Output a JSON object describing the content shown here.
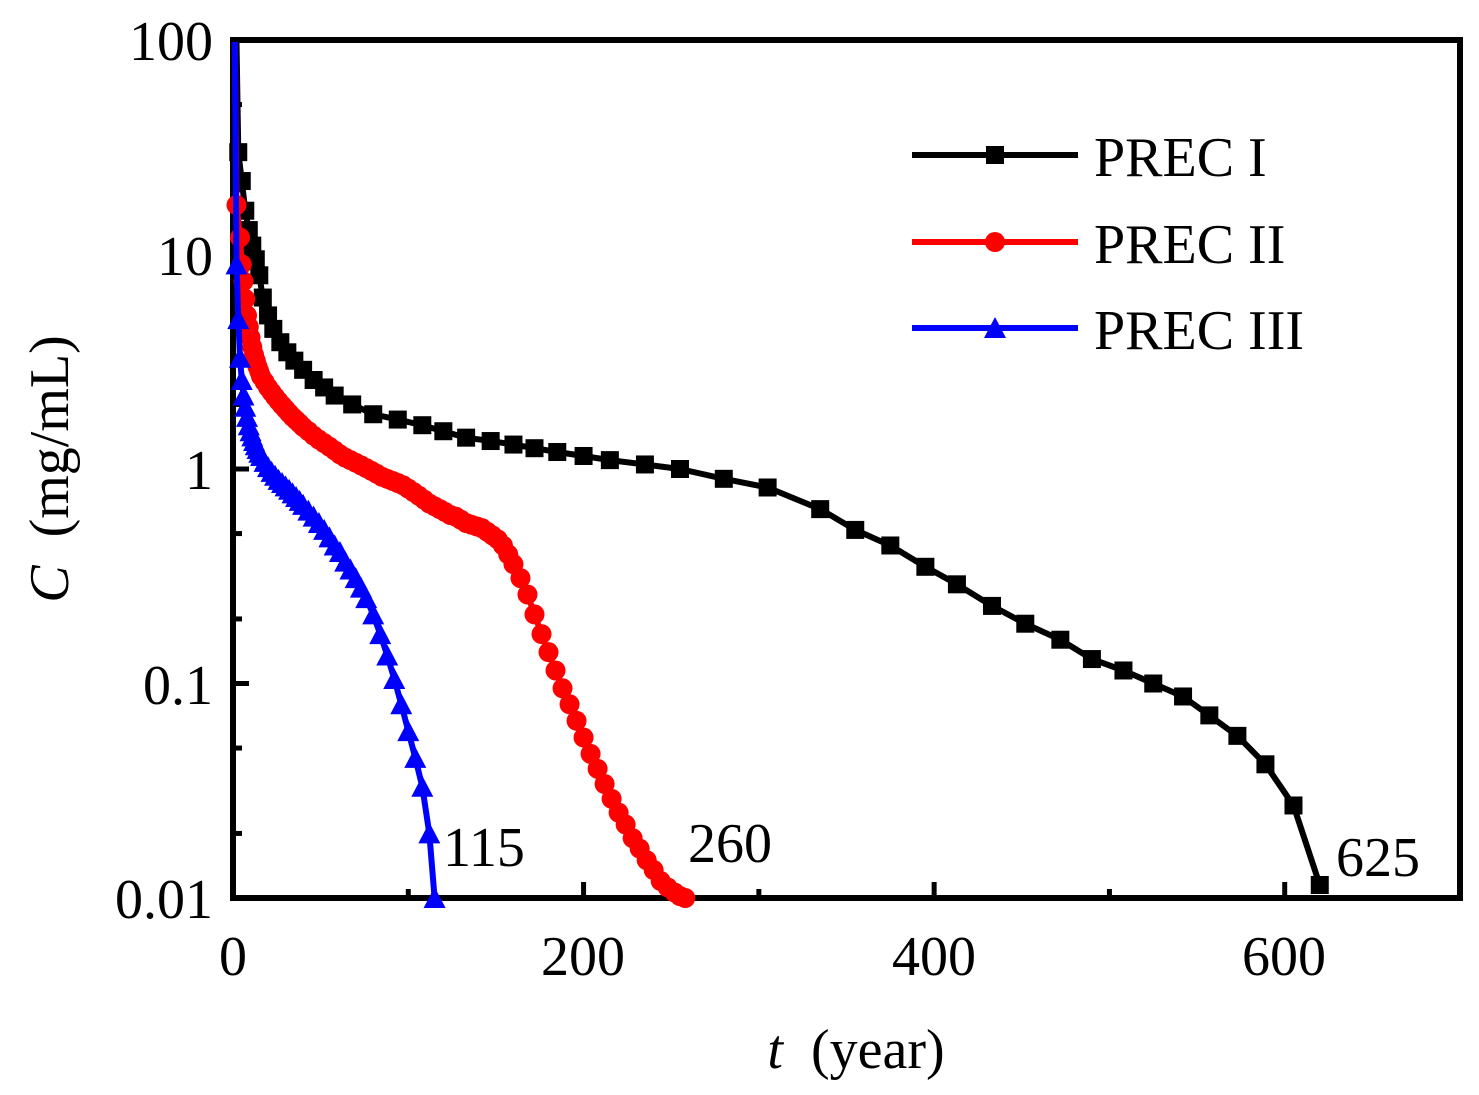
{
  "chart_data": {
    "type": "line",
    "title": "",
    "xlabel_var": "t",
    "xlabel_unit": "(year)",
    "ylabel_var": "C",
    "ylabel_unit": "(mg/mL)",
    "xlim": [
      0,
      700
    ],
    "ylim": [
      0.01,
      100
    ],
    "yscale": "log",
    "x_ticks": [
      0,
      200,
      400,
      600
    ],
    "x_tick_labels": [
      "0",
      "200",
      "400",
      "600"
    ],
    "y_ticks": [
      0.01,
      0.1,
      1,
      10,
      100
    ],
    "y_tick_labels": [
      "0.01",
      "0.1",
      "1",
      "10",
      "100"
    ],
    "legend_position": "top-right",
    "series": [
      {
        "name": "PREC I",
        "color": "#000000",
        "marker": "square",
        "x": [
          3,
          5,
          7,
          9,
          11,
          13,
          15,
          17,
          20,
          23,
          27,
          31,
          35,
          40,
          46,
          52,
          58,
          68,
          80,
          94,
          108,
          120,
          133,
          147,
          160,
          172,
          185,
          200,
          215,
          235,
          255,
          280,
          305,
          335,
          355,
          375,
          395,
          413,
          433,
          452,
          472,
          490,
          508,
          525,
          542,
          557,
          573,
          589,
          605,
          620
        ],
        "y": [
          30,
          22,
          16,
          13,
          11,
          9.5,
          8.0,
          6.3,
          5.2,
          4.5,
          3.9,
          3.5,
          3.2,
          2.9,
          2.6,
          2.4,
          2.2,
          2.0,
          1.8,
          1.7,
          1.6,
          1.5,
          1.4,
          1.35,
          1.3,
          1.25,
          1.2,
          1.15,
          1.1,
          1.05,
          1.0,
          0.9,
          0.82,
          0.65,
          0.52,
          0.44,
          0.35,
          0.29,
          0.23,
          0.19,
          0.16,
          0.13,
          0.115,
          0.1,
          0.087,
          0.071,
          0.057,
          0.042,
          0.027,
          0.0115
        ]
      },
      {
        "name": "PREC II",
        "color": "#ff0000",
        "marker": "circle",
        "x": [
          2,
          4,
          5,
          6,
          7,
          8,
          9,
          10,
          11,
          12,
          13,
          14,
          15,
          16,
          18,
          20,
          22,
          24,
          26,
          28,
          30,
          32,
          34,
          36,
          38,
          40,
          43,
          46,
          49,
          52,
          55,
          58,
          61,
          64,
          67,
          70,
          73,
          76,
          79,
          82,
          85,
          88,
          91,
          94,
          97,
          100,
          103,
          106,
          109,
          112,
          115,
          118,
          121,
          124,
          127,
          130,
          133,
          136,
          139,
          142,
          145,
          148,
          151,
          154,
          157,
          160,
          164,
          168,
          172,
          176,
          180,
          184,
          188,
          192,
          196,
          200,
          204,
          208,
          212,
          216,
          220,
          224,
          228,
          232,
          236,
          240,
          244,
          248,
          252,
          255,
          258
        ],
        "y": [
          17,
          12,
          9,
          7.5,
          6.2,
          5.2,
          4.6,
          4.1,
          3.7,
          3.4,
          3.2,
          3.0,
          2.85,
          2.7,
          2.55,
          2.4,
          2.28,
          2.17,
          2.07,
          1.98,
          1.9,
          1.82,
          1.75,
          1.69,
          1.63,
          1.57,
          1.5,
          1.43,
          1.37,
          1.32,
          1.27,
          1.22,
          1.17,
          1.13,
          1.1,
          1.07,
          1.04,
          1.01,
          0.98,
          0.95,
          0.92,
          0.9,
          0.88,
          0.86,
          0.84,
          0.81,
          0.78,
          0.75,
          0.72,
          0.69,
          0.67,
          0.65,
          0.63,
          0.61,
          0.6,
          0.58,
          0.56,
          0.55,
          0.54,
          0.53,
          0.51,
          0.49,
          0.47,
          0.44,
          0.4,
          0.36,
          0.31,
          0.26,
          0.21,
          0.17,
          0.14,
          0.115,
          0.095,
          0.08,
          0.067,
          0.056,
          0.047,
          0.04,
          0.034,
          0.029,
          0.025,
          0.022,
          0.019,
          0.017,
          0.015,
          0.0135,
          0.012,
          0.0112,
          0.0106,
          0.0102,
          0.01
        ]
      },
      {
        "name": "PREC III",
        "color": "#0000ff",
        "marker": "triangle",
        "x": [
          2,
          3,
          4,
          5,
          6,
          7,
          8,
          9,
          10,
          11,
          12,
          13,
          14,
          15,
          16,
          18,
          20,
          22,
          24,
          26,
          28,
          30,
          32,
          34,
          36,
          38,
          40,
          43,
          46,
          49,
          52,
          55,
          58,
          61,
          64,
          67,
          70,
          73,
          76,
          80,
          84,
          88,
          92,
          96,
          100,
          104,
          108,
          112,
          115
        ],
        "y": [
          9,
          5,
          3.3,
          2.6,
          2.2,
          1.95,
          1.75,
          1.6,
          1.5,
          1.42,
          1.35,
          1.29,
          1.24,
          1.19,
          1.15,
          1.08,
          1.02,
          0.97,
          0.93,
          0.89,
          0.86,
          0.83,
          0.8,
          0.77,
          0.74,
          0.71,
          0.68,
          0.64,
          0.6,
          0.56,
          0.52,
          0.48,
          0.44,
          0.41,
          0.37,
          0.34,
          0.31,
          0.28,
          0.25,
          0.21,
          0.17,
          0.135,
          0.105,
          0.08,
          0.06,
          0.045,
          0.033,
          0.02,
          0.01
        ]
      }
    ],
    "annotations": [
      {
        "text": "115",
        "x": 116,
        "y": 0.018
      },
      {
        "text": "260",
        "x": 261,
        "y": 0.018
      },
      {
        "text": "625",
        "x": 627,
        "y": 0.016
      }
    ]
  }
}
